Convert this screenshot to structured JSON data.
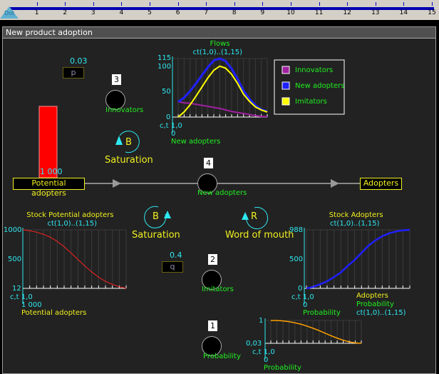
{
  "timeline": {
    "marker": "Dot",
    "ticks": [
      "1",
      "2",
      "3",
      "4",
      "5",
      "6",
      "7",
      "8",
      "9",
      "10",
      "11",
      "12",
      "13",
      "14",
      "15"
    ]
  },
  "panel": {
    "title": "New product adoption"
  },
  "params": {
    "p": {
      "name": "p",
      "value": "0.03"
    },
    "q": {
      "name": "q",
      "value": "0.4"
    }
  },
  "stocks": {
    "potential": {
      "label": "Potential adopters",
      "value": "1 000",
      "level_fraction": 1.0,
      "color": "#ff0000"
    },
    "adopters": {
      "label": "Adopters"
    }
  },
  "flows": {
    "innovators": {
      "order": "3",
      "label": "Innovators"
    },
    "new_adopters": {
      "order": "4",
      "label": "New adopters"
    },
    "imitators": {
      "order": "2",
      "label": "Imitators"
    },
    "probability": {
      "order": "1",
      "label": "Probability"
    }
  },
  "loops": [
    {
      "letter": "B",
      "label": "Saturation"
    },
    {
      "letter": "B",
      "label": "Saturation"
    },
    {
      "letter": "R",
      "label": "Word of mouth"
    }
  ],
  "chart_data": [
    {
      "type": "line",
      "title": "Flows",
      "subtitle": "ct(1,0)..(1,15)",
      "ylim": [
        0,
        115
      ],
      "yticks": [
        "115",
        "100",
        "50",
        "0"
      ],
      "x_start": "c,t 1,0",
      "x_value": "0",
      "xlabel": "New adopters",
      "x": [
        0,
        1,
        2,
        3,
        4,
        5,
        6,
        7,
        8,
        9,
        10,
        11,
        12,
        13,
        14,
        15
      ],
      "series": [
        {
          "name": "Innovators",
          "color": "#a020a0",
          "values": [
            30,
            28,
            27,
            25,
            23,
            21,
            19,
            17,
            14,
            11,
            9,
            7,
            5,
            3,
            1,
            1
          ]
        },
        {
          "name": "New adopters",
          "color": "#2020ff",
          "values": [
            30,
            38,
            51,
            66,
            82,
            98,
            111,
            115,
            110,
            95,
            75,
            52,
            36,
            23,
            15,
            11
          ]
        },
        {
          "name": "Imitators",
          "color": "#ffff00",
          "values": [
            0,
            10,
            24,
            41,
            59,
            77,
            92,
            100,
            96,
            84,
            66,
            45,
            31,
            20,
            14,
            10
          ]
        }
      ],
      "legend": "right"
    },
    {
      "type": "line",
      "title": "Stock Potential adopters",
      "subtitle": "ct(1,0)..(1,15)",
      "ylim": [
        12,
        1000
      ],
      "yticks": [
        "1000",
        "500",
        "12"
      ],
      "x_start": "c,t 1,0",
      "x_value": "1 000",
      "xlabel": "Potential adopters",
      "x": [
        0,
        1,
        2,
        3,
        4,
        5,
        6,
        7,
        8,
        9,
        10,
        11,
        12,
        13,
        14,
        15
      ],
      "series": [
        {
          "color": "#ff2020",
          "values": [
            1000,
            985,
            960,
            925,
            875,
            805,
            715,
            610,
            500,
            390,
            290,
            200,
            130,
            80,
            40,
            12
          ]
        }
      ]
    },
    {
      "type": "line",
      "title": "Stock Adopters",
      "subtitle": "ct(1,0)..(1,15)",
      "ylim": [
        0,
        988
      ],
      "yticks": [
        "988",
        "500",
        "0"
      ],
      "x_start": "c,t 1,0",
      "x_value": "0",
      "xlabel": "Probability",
      "x": [
        0,
        1,
        2,
        3,
        4,
        5,
        6,
        7,
        8,
        9,
        10,
        11,
        12,
        13,
        14,
        15
      ],
      "series": [
        {
          "color": "#2020ff",
          "values": [
            0,
            25,
            70,
            120,
            190,
            270,
            380,
            480,
            600,
            720,
            810,
            880,
            930,
            960,
            980,
            988
          ]
        }
      ]
    },
    {
      "type": "line",
      "title": "Probability",
      "subtitle": "ct(1,0)..(1,15)",
      "ylim": [
        0.03,
        1
      ],
      "yticks": [
        "1",
        "0,03"
      ],
      "x_start": "c,t 1,0",
      "x_value": "0",
      "xlabel": "Probability",
      "overlap_label": "Adopters",
      "x": [
        0,
        1,
        2,
        3,
        4,
        5,
        6,
        7,
        8,
        9,
        10,
        11,
        12,
        13,
        14,
        15
      ],
      "series": [
        {
          "color": "#ffa000",
          "values": [
            1,
            1,
            0.98,
            0.95,
            0.9,
            0.84,
            0.76,
            0.67,
            0.57,
            0.46,
            0.35,
            0.25,
            0.16,
            0.09,
            0.05,
            0.03
          ]
        }
      ]
    }
  ]
}
